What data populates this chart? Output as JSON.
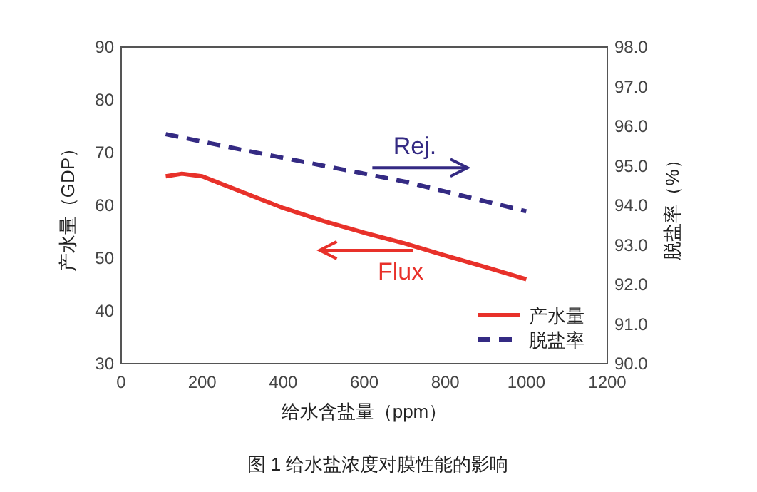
{
  "chart_data": {
    "type": "line",
    "title": "图 1 给水盐浓度对膜性能的影响",
    "xlabel": "给水含盐量（ppm）",
    "ylabel": "产水量（GDP）",
    "y2label": "脱盐率（%）",
    "annotations": [
      "Rej.",
      "Flux"
    ],
    "xlim": [
      0,
      1200
    ],
    "xticks": [
      0,
      200,
      400,
      600,
      800,
      1000,
      1200
    ],
    "ylim": [
      30,
      90
    ],
    "yticks": [
      30,
      40,
      50,
      60,
      70,
      80,
      90
    ],
    "y2lim": [
      90,
      98
    ],
    "y2ticks": [
      {
        "value": 90,
        "label": "90.0"
      },
      {
        "value": 91,
        "label": "91.0"
      },
      {
        "value": 92,
        "label": "92.0"
      },
      {
        "value": 93,
        "label": "93.0"
      },
      {
        "value": 94,
        "label": "94.0"
      },
      {
        "value": 95,
        "label": "95.0"
      },
      {
        "value": 96,
        "label": "96.0"
      },
      {
        "value": 97,
        "label": "97.0"
      },
      {
        "value": 98,
        "label": "98.0"
      }
    ],
    "grid": false,
    "legend": "bottom right",
    "series": [
      {
        "name": "产水量",
        "color": "#e8312a",
        "line_style": "solid",
        "x": [
          110,
          150,
          200,
          300,
          400,
          500,
          600,
          700,
          800,
          900,
          1000
        ],
        "values": [
          65.5,
          66,
          65.5,
          62.5,
          59.5,
          57,
          54.8,
          52.8,
          50.5,
          48.3,
          46
        ]
      },
      {
        "name": "脱盐率",
        "color": "#342a83",
        "line_style": "dashed",
        "axis": "y2",
        "x": [
          110,
          300,
          500,
          700,
          1000
        ],
        "values": [
          95.8,
          95.4,
          95.0,
          94.6,
          93.85
        ]
      }
    ]
  }
}
